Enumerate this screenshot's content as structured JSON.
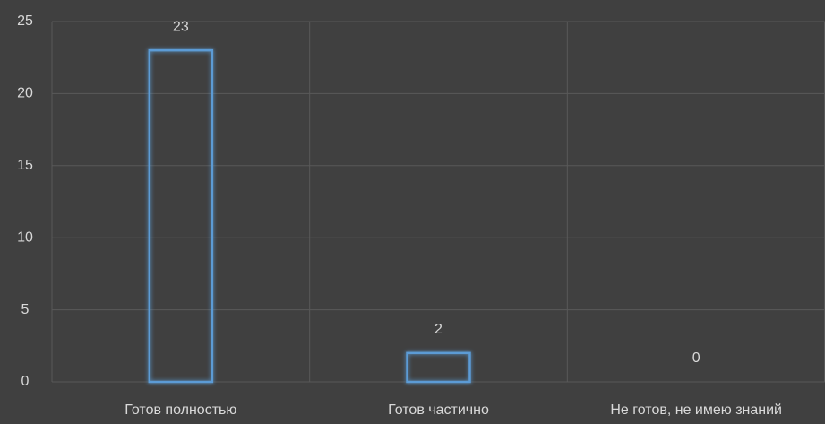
{
  "chart_data": {
    "type": "bar",
    "categories": [
      "Готов полностью",
      "Готов частично",
      "Не готов, не имею знаний"
    ],
    "values": [
      23,
      2,
      0
    ],
    "color": "#5b9bd5",
    "ylim": [
      0,
      25
    ],
    "yticks": [
      0,
      5,
      10,
      15,
      20,
      25
    ],
    "grid": true
  }
}
